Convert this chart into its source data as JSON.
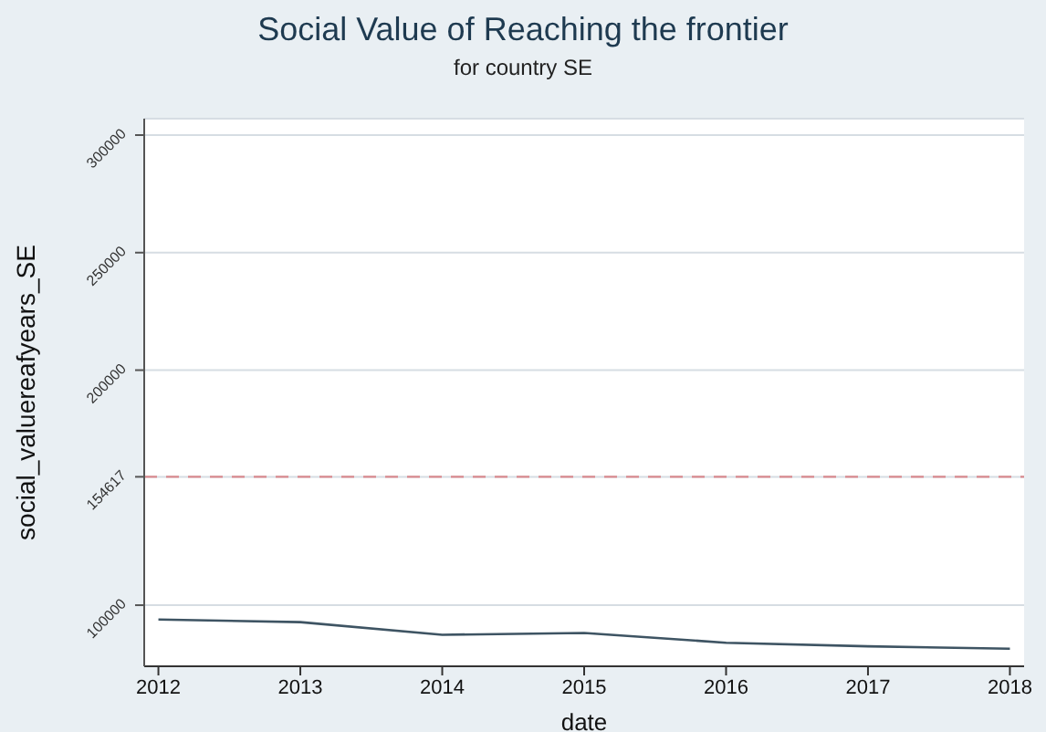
{
  "chart_data": {
    "type": "line",
    "title": "Social Value of Reaching the frontier",
    "subtitle": "for country SE",
    "xlabel": "date",
    "ylabel": "social_valuereafyears_SE",
    "x": [
      2012,
      2013,
      2014,
      2015,
      2016,
      2017,
      2018
    ],
    "series": [
      {
        "color": "#3e5463",
        "values": [
          93900,
          92800,
          87400,
          88200,
          84000,
          82500,
          81500
        ]
      }
    ],
    "xlim": [
      2011.9,
      2018.1
    ],
    "xticks": [
      2012,
      2013,
      2014,
      2015,
      2016,
      2017,
      2018
    ],
    "ylim": [
      74000,
      307000
    ],
    "yticks": [
      100000,
      154617,
      200000,
      250000,
      300000
    ],
    "ref_lines": [
      {
        "axis": "y",
        "value": 154617,
        "color": "#d98a8f",
        "line_style": "dashed"
      }
    ],
    "grid": "y",
    "marker": "none",
    "line_style": "solid"
  }
}
